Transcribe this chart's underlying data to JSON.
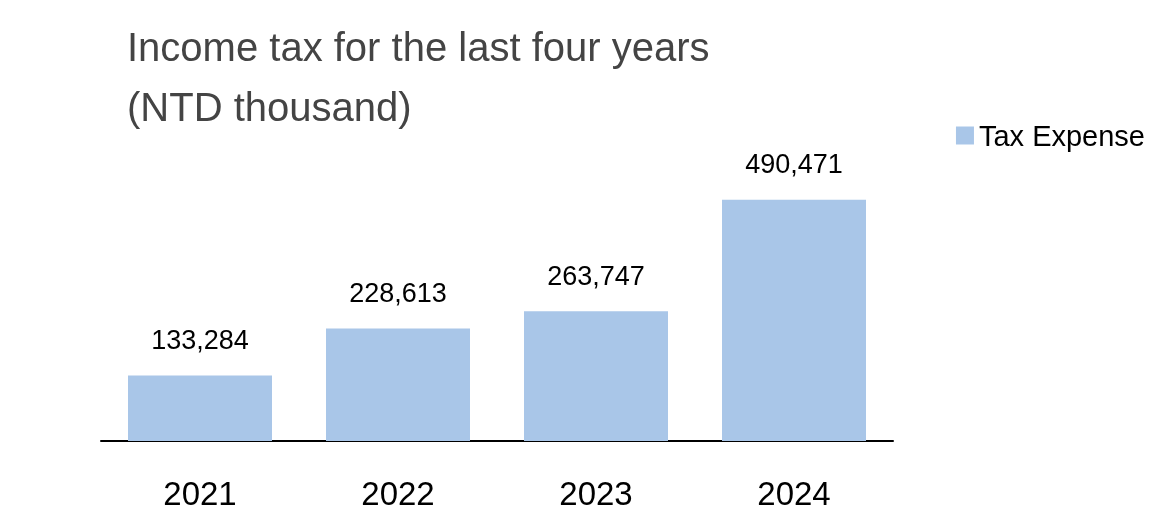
{
  "chart_data": {
    "type": "bar",
    "title": "Income tax for the last four years\n(NTD thousand)",
    "categories": [
      "2021",
      "2022",
      "2023",
      "2024"
    ],
    "series": [
      {
        "name": "Tax Expense",
        "color": "#a9c6e8",
        "values": [
          133284,
          228613,
          263747,
          490471
        ],
        "value_labels": [
          "133,284",
          "228,613",
          "263,747",
          "490,471"
        ]
      }
    ],
    "legend": "top right",
    "grid": false
  }
}
